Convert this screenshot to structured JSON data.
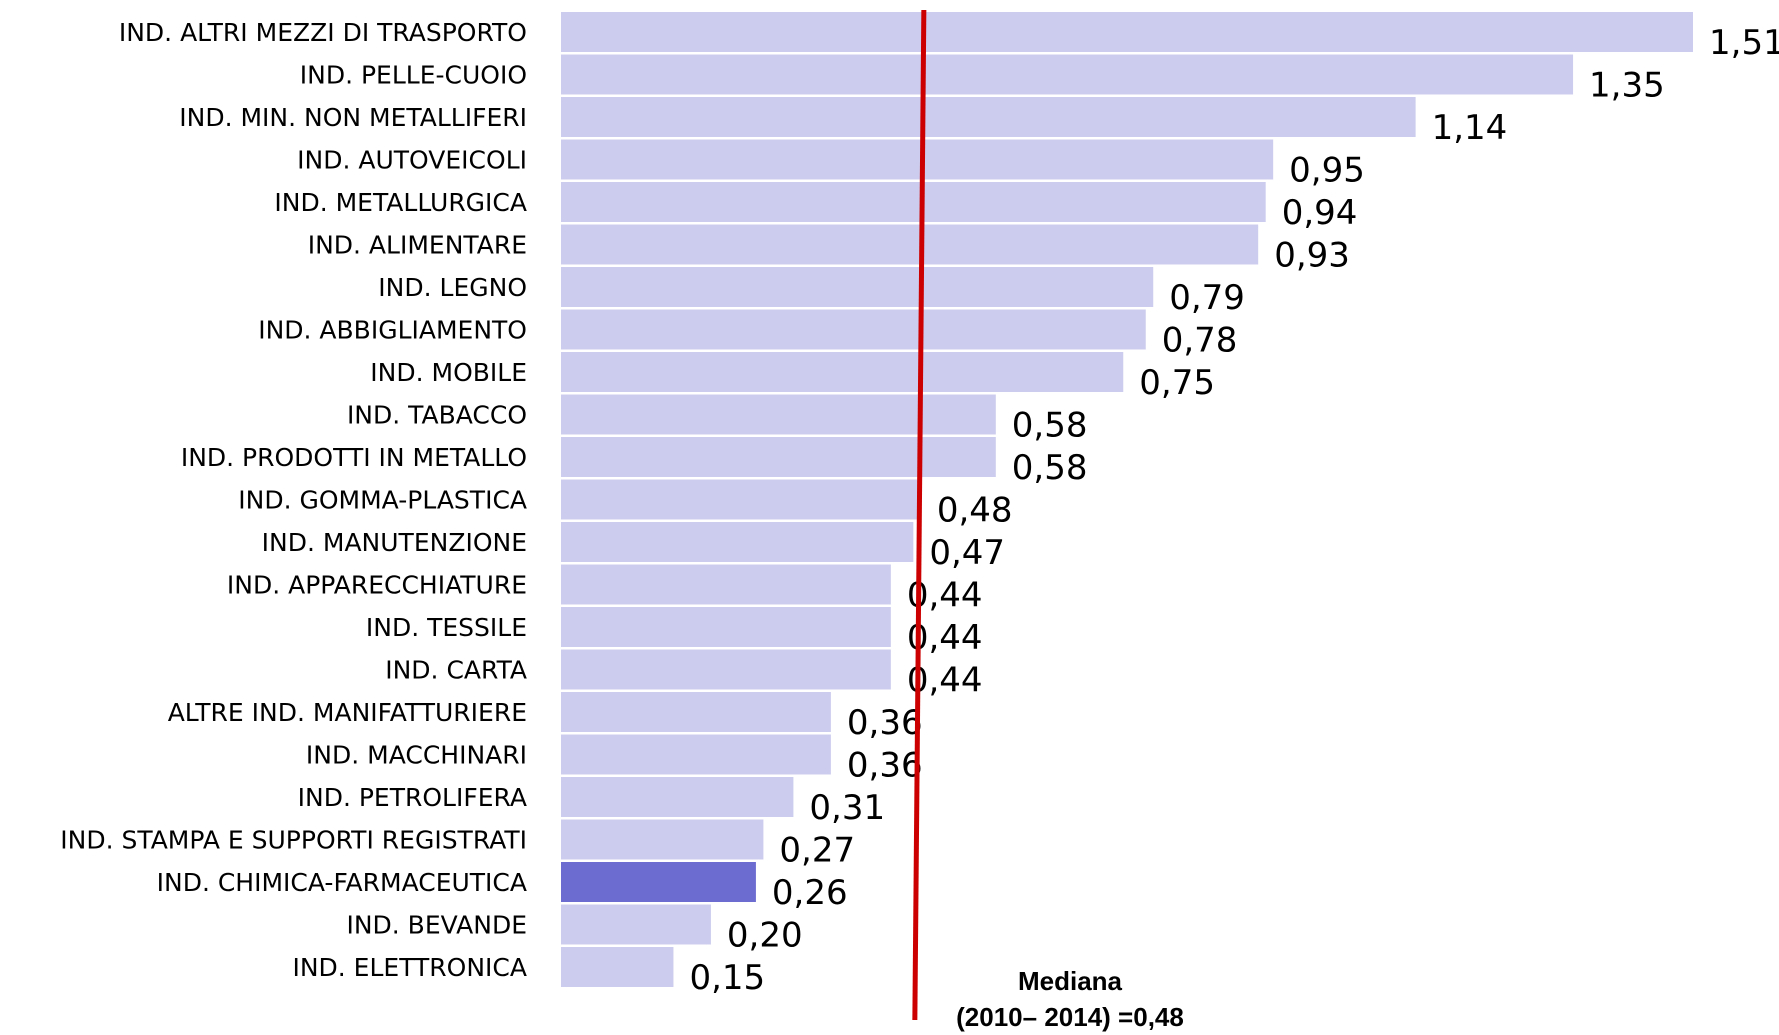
{
  "chart_data": {
    "type": "bar",
    "orientation": "horizontal",
    "categories": [
      "IND. ALTRI MEZZI DI TRASPORTO",
      "IND. PELLE-CUOIO",
      "IND. MIN. NON METALLIFERI",
      "IND. AUTOVEICOLI",
      "IND. METALLURGICA",
      "IND. ALIMENTARE",
      "IND. LEGNO",
      "IND. ABBIGLIAMENTO",
      "IND. MOBILE",
      "IND. TABACCO",
      "IND. PRODOTTI IN METALLO",
      "IND. GOMMA-PLASTICA",
      "IND. MANUTENZIONE",
      "IND. APPARECCHIATURE",
      "IND. TESSILE",
      "IND. CARTA",
      "ALTRE IND. MANIFATTURIERE",
      "IND. MACCHINARI",
      "IND. PETROLIFERA",
      "IND. STAMPA E SUPPORTI REGISTRATI",
      "IND. CHIMICA-FARMACEUTICA",
      "IND. BEVANDE",
      "IND. ELETTRONICA"
    ],
    "values": [
      1.51,
      1.35,
      1.14,
      0.95,
      0.94,
      0.93,
      0.79,
      0.78,
      0.75,
      0.58,
      0.58,
      0.48,
      0.47,
      0.44,
      0.44,
      0.44,
      0.36,
      0.36,
      0.31,
      0.27,
      0.26,
      0.2,
      0.15
    ],
    "value_labels": [
      "1,51",
      "1,35",
      "1,14",
      "0,95",
      "0,94",
      "0,93",
      "0,79",
      "0,78",
      "0,75",
      "0,58",
      "0,58",
      "0,48",
      "0,47",
      "0,44",
      "0,44",
      "0,44",
      "0,36",
      "0,36",
      "0,31",
      "0,27",
      "0,26",
      "0,20",
      "0,15"
    ],
    "highlight_category": "IND. CHIMICA-FARMACEUTICA",
    "median": {
      "value": 0.48,
      "label_line1": "Mediana",
      "label_line2": "(2010– 2014) =0,48"
    },
    "xlim": [
      0,
      1.51
    ],
    "grid": false,
    "legend": "none",
    "colors": {
      "bar": "#cccdee",
      "highlight": "#6b6bd0",
      "median_line": "#cc0000"
    },
    "title": "",
    "xlabel": "",
    "ylabel": ""
  }
}
